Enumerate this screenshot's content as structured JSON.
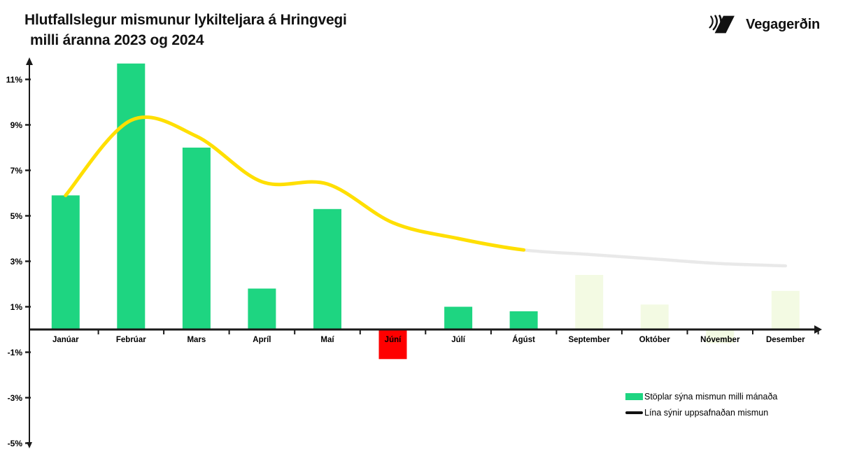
{
  "header": {
    "title_line1": "Hlutfallslegur mismunur lykilteljara á Hringvegi",
    "title_line2": "milli áranna 2023 og 2024",
    "logo_text": "Vegagerðin"
  },
  "legend": {
    "bars_label": "Stöplar sýna mismun milli mánaða",
    "line_label": "Lína sýnir uppsafnaðan mismun"
  },
  "colors": {
    "bar_green": "#1ed581",
    "bar_red": "#fe0000",
    "bar_pale": "#f3fae3",
    "line_yellow": "#ffdf00",
    "line_gray": "#e9e9e9",
    "legend_line": "#111111",
    "axis": "#1a1a1a",
    "text": "#000000"
  },
  "chart_data": {
    "type": "bar+line",
    "title": "Hlutfallslegur mismunur lykilteljara á Hringvegi milli áranna 2023 og 2024",
    "categories": [
      "Janúar",
      "Febrúar",
      "Mars",
      "Apríl",
      "Maí",
      "Júní",
      "Júlí",
      "Ágúst",
      "September",
      "Október",
      "Nóvember",
      "Desember"
    ],
    "series": [
      {
        "name": "Stöplar sýna mismun milli mánaða",
        "type": "bar",
        "values": [
          5.9,
          11.7,
          8.0,
          1.8,
          5.3,
          -1.3,
          1.0,
          0.8,
          2.4,
          1.1,
          -0.6,
          1.7
        ],
        "bar_styles": [
          "green",
          "green",
          "green",
          "green",
          "green",
          "red",
          "green",
          "green",
          "pale",
          "pale",
          "pale",
          "pale"
        ]
      },
      {
        "name": "Lína sýnir uppsafnaðan mismun",
        "type": "line",
        "values": [
          5.9,
          9.2,
          8.5,
          6.5,
          6.4,
          4.7,
          4.0,
          3.5,
          3.3,
          3.1,
          2.9,
          2.8
        ],
        "solid_color_through_index": 7,
        "note_solid_segment": "yellow Janúar–Ágúst",
        "note_faded_segment": "gray Ágúst–Desember"
      }
    ],
    "y_tick_values": [
      11,
      9,
      7,
      5,
      3,
      1,
      -1,
      -3,
      -5
    ],
    "y_tick_suffix": "%",
    "ylim": [
      -5,
      12.5
    ],
    "grid": false,
    "legend_position": "bottom-right"
  }
}
